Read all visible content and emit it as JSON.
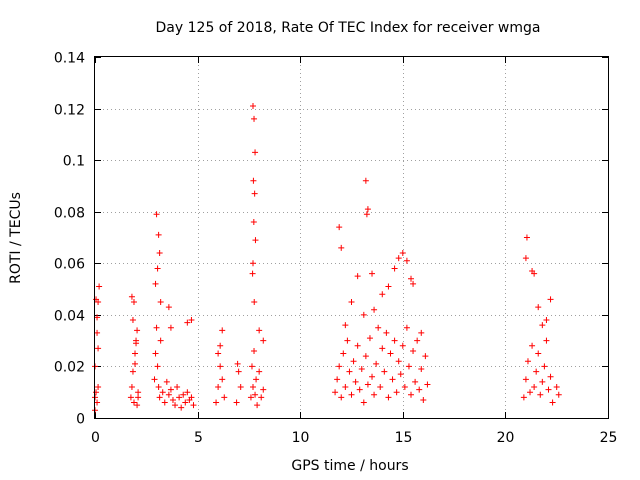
{
  "chart_data": {
    "type": "scatter",
    "title": "Day 125 of 2018, Rate Of TEC Index for receiver wmga",
    "xlabel": "GPS time / hours",
    "ylabel": "ROTI / TECUs",
    "xlim": [
      0,
      25
    ],
    "ylim": [
      0,
      0.14
    ],
    "xticks": [
      0,
      5,
      10,
      15,
      20,
      25
    ],
    "xtick_labels": [
      "0",
      "5",
      "10",
      "15",
      "20",
      "25"
    ],
    "yticks": [
      0,
      0.02,
      0.04,
      0.06,
      0.08,
      0.1,
      0.12,
      0.14
    ],
    "ytick_labels": [
      "0",
      "0.02",
      "0.04",
      "0.06",
      "0.08",
      "0.1",
      "0.12",
      "0.14"
    ],
    "grid": true,
    "marker": "+",
    "marker_color": "#ff0000",
    "series": [
      {
        "name": "ROTI",
        "x": [
          0.0,
          0.05,
          0.1,
          0.15,
          0.0,
          0.1,
          0.15,
          0.05,
          0.2,
          0.1,
          0.0,
          0.15,
          1.75,
          1.8,
          1.85,
          1.9,
          1.95,
          2.0,
          2.05,
          2.1,
          1.8,
          1.9,
          2.0,
          2.1,
          1.85,
          1.95,
          2.05,
          2.9,
          2.95,
          3.0,
          3.05,
          3.1,
          3.15,
          3.2,
          3.3,
          3.4,
          3.5,
          3.6,
          3.7,
          3.8,
          3.9,
          4.0,
          4.1,
          4.2,
          4.3,
          4.4,
          4.5,
          4.6,
          4.7,
          4.8,
          3.0,
          3.1,
          3.05,
          2.95,
          3.15,
          3.2,
          3.6,
          3.7,
          4.5,
          4.7,
          5.9,
          6.0,
          6.1,
          6.2,
          6.3,
          6.0,
          6.2,
          6.1,
          6.9,
          7.0,
          7.1,
          6.95,
          7.6,
          7.65,
          7.7,
          7.75,
          7.8,
          7.85,
          7.9,
          8.0,
          8.1,
          8.2,
          7.7,
          7.75,
          7.8,
          7.72,
          7.78,
          7.74,
          7.82,
          7.68,
          7.7,
          8.0,
          8.2,
          7.76,
          11.7,
          11.8,
          11.9,
          12.0,
          12.1,
          12.2,
          12.3,
          12.4,
          12.5,
          12.6,
          12.7,
          12.8,
          12.9,
          13.0,
          13.1,
          13.2,
          13.3,
          13.4,
          13.5,
          13.6,
          13.7,
          13.8,
          13.9,
          14.0,
          14.1,
          14.2,
          14.3,
          14.4,
          14.5,
          14.6,
          14.7,
          14.8,
          14.9,
          15.0,
          15.1,
          15.2,
          15.3,
          15.4,
          15.5,
          15.6,
          15.7,
          15.8,
          15.9,
          16.0,
          16.1,
          16.2,
          11.9,
          12.0,
          12.5,
          12.8,
          13.2,
          13.3,
          13.25,
          13.5,
          14.0,
          14.8,
          15.0,
          15.2,
          15.4,
          13.6,
          14.3,
          15.5,
          12.2,
          13.1,
          14.6,
          15.9,
          20.9,
          21.0,
          21.1,
          21.2,
          21.3,
          21.4,
          21.5,
          21.6,
          21.7,
          21.8,
          21.9,
          22.0,
          22.1,
          22.2,
          22.3,
          22.5,
          22.6,
          21.05,
          21.0,
          21.3,
          21.4,
          21.8,
          22.2,
          22.0,
          21.6
        ],
        "y": [
          0.008,
          0.01,
          0.006,
          0.012,
          0.02,
          0.033,
          0.045,
          0.046,
          0.051,
          0.039,
          0.003,
          0.027,
          0.008,
          0.012,
          0.018,
          0.006,
          0.025,
          0.03,
          0.034,
          0.01,
          0.047,
          0.045,
          0.029,
          0.008,
          0.038,
          0.021,
          0.005,
          0.015,
          0.025,
          0.035,
          0.02,
          0.012,
          0.008,
          0.03,
          0.01,
          0.006,
          0.014,
          0.009,
          0.011,
          0.007,
          0.005,
          0.012,
          0.008,
          0.004,
          0.009,
          0.006,
          0.01,
          0.007,
          0.008,
          0.005,
          0.079,
          0.071,
          0.058,
          0.052,
          0.064,
          0.045,
          0.043,
          0.035,
          0.037,
          0.038,
          0.006,
          0.012,
          0.02,
          0.015,
          0.008,
          0.025,
          0.034,
          0.028,
          0.006,
          0.018,
          0.012,
          0.021,
          0.008,
          0.02,
          0.012,
          0.026,
          0.009,
          0.015,
          0.005,
          0.018,
          0.008,
          0.011,
          0.121,
          0.116,
          0.103,
          0.092,
          0.087,
          0.076,
          0.069,
          0.056,
          0.06,
          0.034,
          0.03,
          0.045,
          0.01,
          0.015,
          0.02,
          0.008,
          0.025,
          0.012,
          0.03,
          0.018,
          0.009,
          0.022,
          0.014,
          0.028,
          0.011,
          0.019,
          0.006,
          0.024,
          0.013,
          0.031,
          0.016,
          0.009,
          0.021,
          0.035,
          0.012,
          0.027,
          0.018,
          0.033,
          0.008,
          0.025,
          0.015,
          0.03,
          0.01,
          0.022,
          0.017,
          0.028,
          0.012,
          0.035,
          0.02,
          0.009,
          0.026,
          0.014,
          0.03,
          0.011,
          0.019,
          0.007,
          0.024,
          0.013,
          0.074,
          0.066,
          0.045,
          0.055,
          0.092,
          0.081,
          0.079,
          0.056,
          0.048,
          0.062,
          0.064,
          0.061,
          0.054,
          0.042,
          0.051,
          0.052,
          0.036,
          0.04,
          0.058,
          0.033,
          0.008,
          0.015,
          0.022,
          0.01,
          0.028,
          0.012,
          0.018,
          0.025,
          0.009,
          0.014,
          0.02,
          0.03,
          0.011,
          0.016,
          0.006,
          0.012,
          0.009,
          0.07,
          0.062,
          0.057,
          0.056,
          0.036,
          0.046,
          0.038,
          0.043
        ]
      }
    ]
  }
}
